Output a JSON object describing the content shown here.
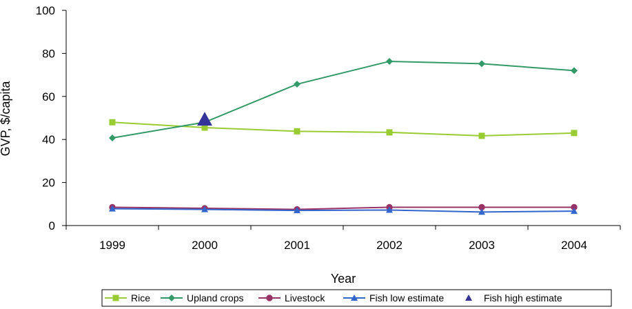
{
  "chart_data": {
    "type": "line",
    "title": "",
    "xlabel": "Year",
    "ylabel": "GVP, $/capita",
    "categories": [
      "1999",
      "2000",
      "2001",
      "2002",
      "2003",
      "2004"
    ],
    "ylim": [
      0,
      100
    ],
    "yticks": [
      0,
      20,
      40,
      60,
      80,
      100
    ],
    "grid": false,
    "legend_position": "bottom",
    "series": [
      {
        "name": "Rice",
        "values": [
          48,
          45.5,
          43.8,
          43.3,
          41.7,
          43
        ],
        "color": "#99CC33",
        "marker": "square",
        "line": true
      },
      {
        "name": "Upland crops",
        "values": [
          40.7,
          48,
          65.7,
          76.3,
          75.2,
          72
        ],
        "color": "#339966",
        "marker": "diamond",
        "line": true
      },
      {
        "name": "Livestock",
        "values": [
          8.5,
          8,
          7.5,
          8.5,
          8.5,
          8.5
        ],
        "color": "#993366",
        "marker": "circle",
        "line": true
      },
      {
        "name": "Fish low estimate",
        "values": [
          7.8,
          7.5,
          7,
          7.2,
          6.3,
          6.7
        ],
        "color": "#3366CC",
        "marker": "triangle",
        "line": true
      },
      {
        "name": "Fish high estimate",
        "values": [
          null,
          49,
          null,
          null,
          null,
          null
        ],
        "color": "#333399",
        "marker": "triangle-large",
        "line": false
      }
    ]
  }
}
